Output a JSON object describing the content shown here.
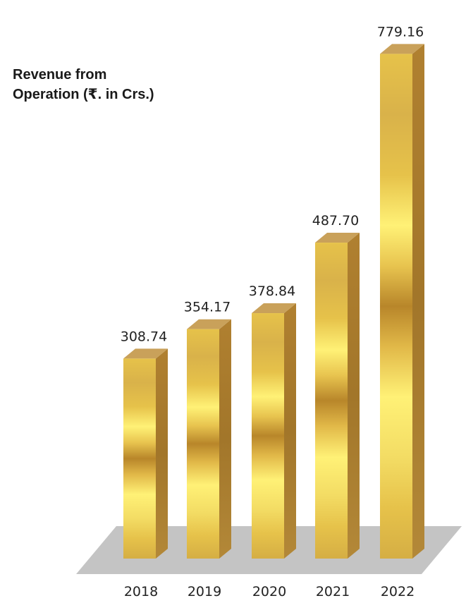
{
  "chart_data": {
    "type": "bar",
    "title_lines": [
      "Revenue from",
      "Operation (₹. in Crs.)"
    ],
    "categories": [
      "2018",
      "2019",
      "2020",
      "2021",
      "2022"
    ],
    "values": [
      308.74,
      354.17,
      378.84,
      487.7,
      779.16
    ],
    "value_labels": [
      "308.74",
      "354.17",
      "378.84",
      "487.70",
      "779.16"
    ],
    "style": "3d-gold-columns",
    "colors": {
      "bar_light": "#fff176",
      "bar_mid": "#e6c24a",
      "bar_dark": "#b8862a",
      "bar_side": "#b98a35",
      "bar_top": "#c9a15a",
      "floor": "#c4c4c4"
    },
    "grid": false,
    "legend": "none"
  }
}
